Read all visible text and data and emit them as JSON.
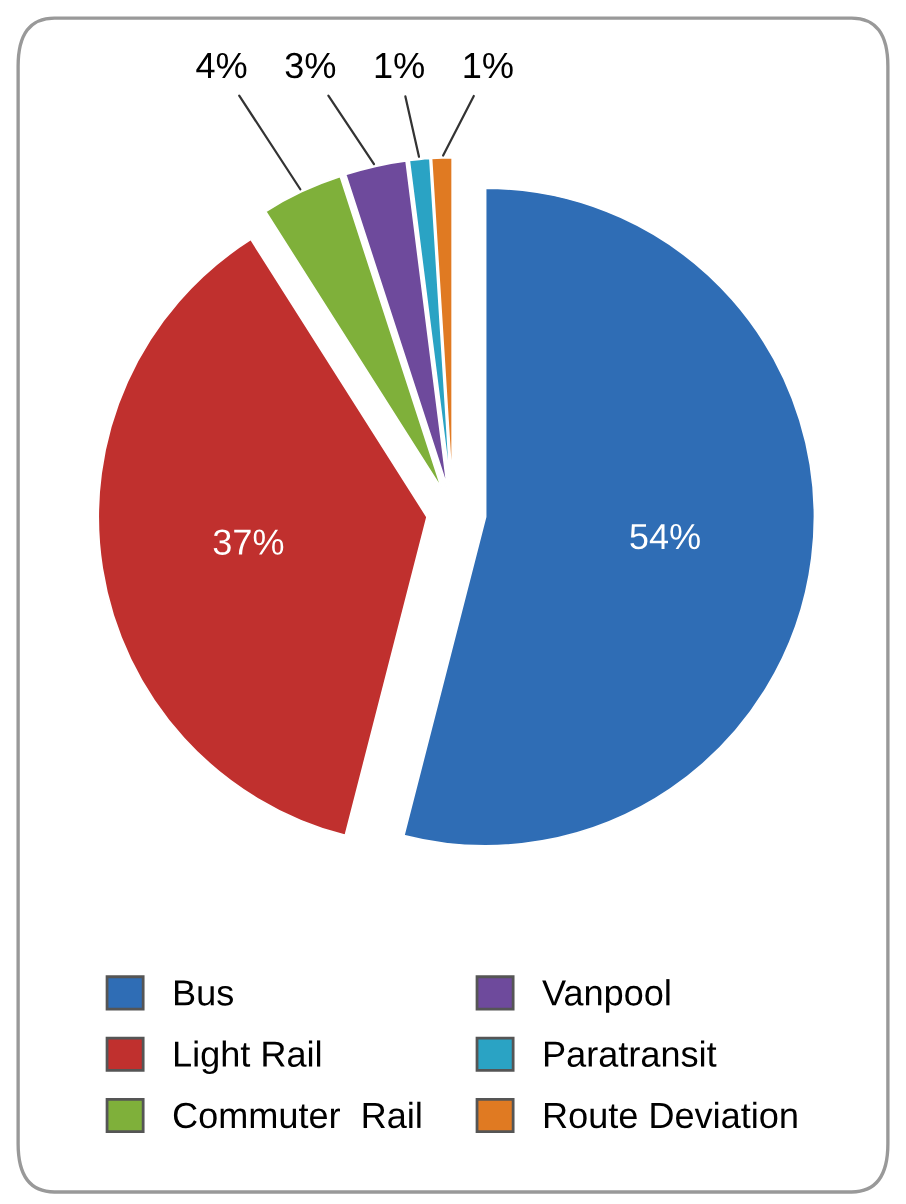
{
  "chart_data": {
    "type": "pie",
    "categories": [
      "Bus",
      "Light Rail",
      "Commuter  Rail",
      "Vanpool",
      "Paratransit",
      "Route Deviation"
    ],
    "values": [
      54,
      37,
      4,
      3,
      1,
      1
    ],
    "value_labels": [
      "54%",
      "37%",
      "4%",
      "3%",
      "1%",
      "1%"
    ],
    "colors": [
      "#2f6db5",
      "#c0302e",
      "#7fb03a",
      "#6e4a9c",
      "#2aa3c4",
      "#e07a22"
    ],
    "legend": "bottom"
  }
}
